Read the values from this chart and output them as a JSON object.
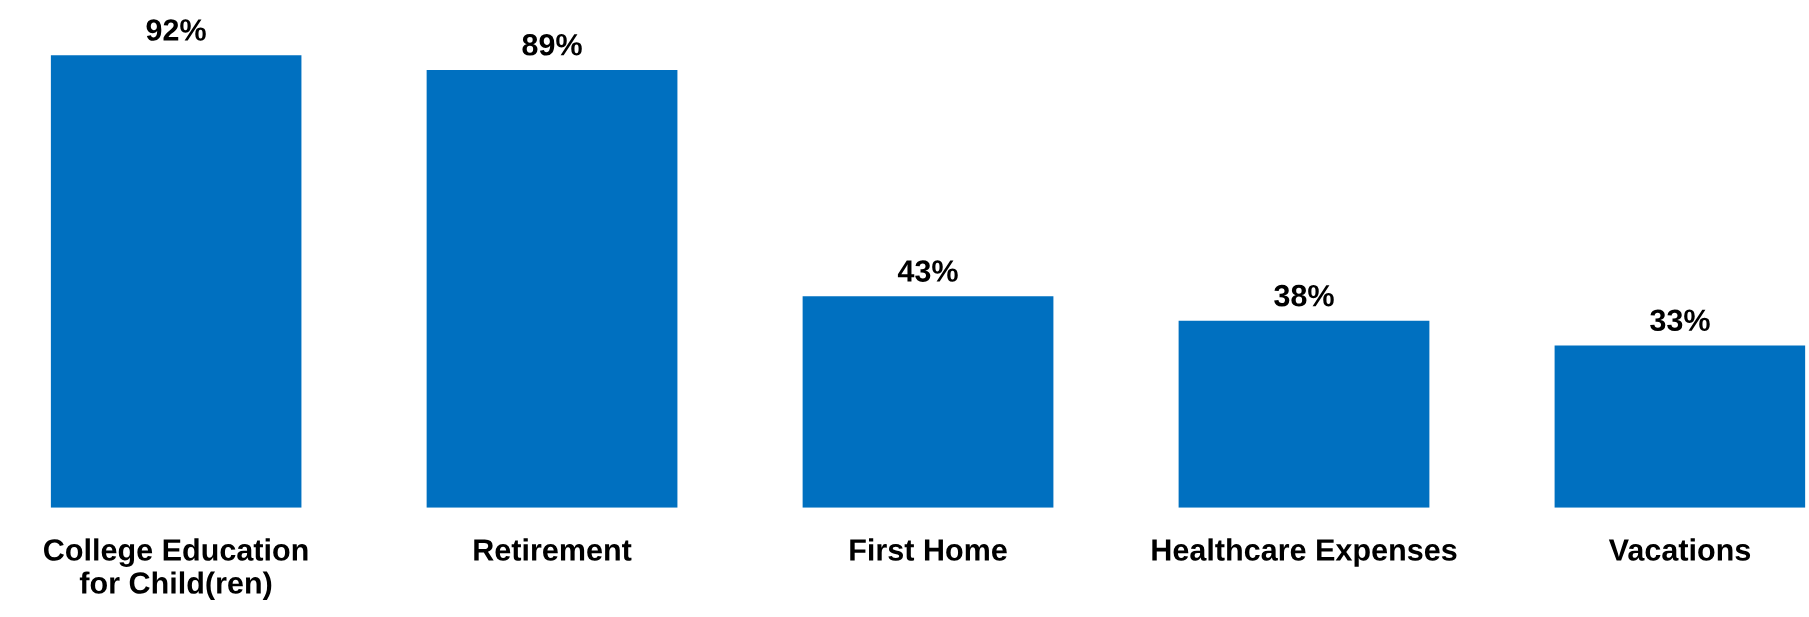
{
  "chart_data": {
    "type": "bar",
    "categories": [
      "College Education\nfor Child(ren)",
      "Retirement",
      "First Home",
      "Healthcare Expenses",
      "Vacations"
    ],
    "values": [
      92,
      89,
      43,
      38,
      33
    ],
    "value_labels": [
      "92%",
      "89%",
      "43%",
      "38%",
      "33%"
    ],
    "color": "#0070c0",
    "grid": false,
    "legend": false,
    "tick_labels": "x"
  }
}
